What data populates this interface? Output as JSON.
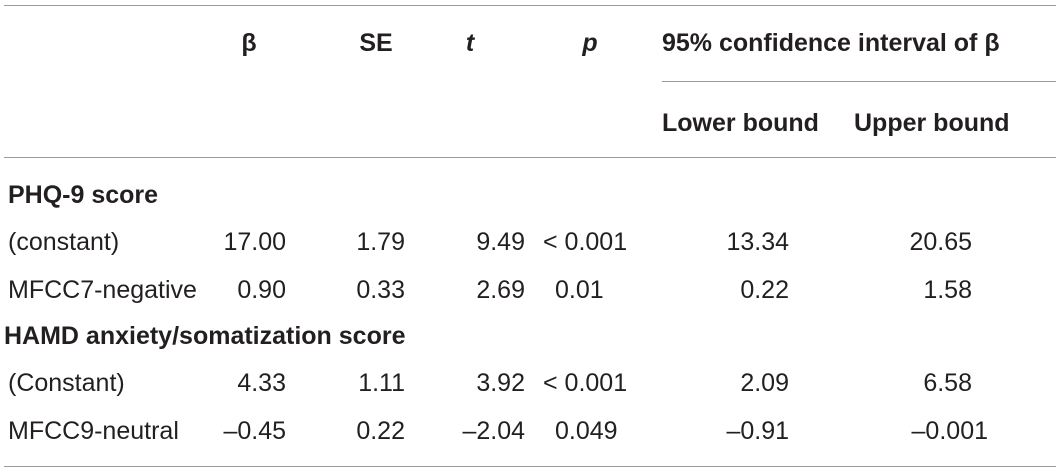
{
  "table": {
    "headers": {
      "beta": "β",
      "se": "SE",
      "t": "t",
      "p": "p",
      "ci": "95% confidence interval of β",
      "lower": "Lower bound",
      "upper": "Upper bound"
    },
    "sections": [
      {
        "title": "PHQ-9 score",
        "rows": [
          {
            "label": "(constant)",
            "beta": "17.00",
            "se": "1.79",
            "t": "9.49",
            "p": "< 0.001",
            "lower": "13.34",
            "upper": "20.65"
          },
          {
            "label": "MFCC7-negative",
            "beta": "0.90",
            "se": "0.33",
            "t": "2.69",
            "p": "0.01",
            "lower": "0.22",
            "upper": "1.58"
          }
        ]
      },
      {
        "title": "HAMD anxiety/somatization score",
        "rows": [
          {
            "label": "(Constant)",
            "beta": "4.33",
            "se": "1.11",
            "t": "3.92",
            "p": "< 0.001",
            "lower": "2.09",
            "upper": "6.58"
          },
          {
            "label": "MFCC9-neutral",
            "beta": "–0.45",
            "se": "0.22",
            "t": "–2.04",
            "p": "0.049",
            "lower": "–0.91",
            "upper": "–0.001"
          }
        ]
      }
    ]
  }
}
